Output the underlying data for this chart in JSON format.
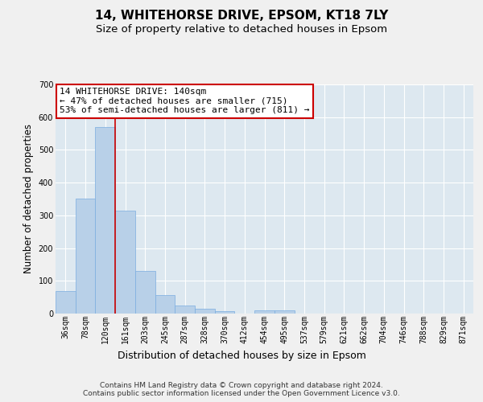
{
  "title1": "14, WHITEHORSE DRIVE, EPSOM, KT18 7LY",
  "title2": "Size of property relative to detached houses in Epsom",
  "xlabel": "Distribution of detached houses by size in Epsom",
  "ylabel": "Number of detached properties",
  "bar_labels": [
    "36sqm",
    "78sqm",
    "120sqm",
    "161sqm",
    "203sqm",
    "245sqm",
    "287sqm",
    "328sqm",
    "370sqm",
    "412sqm",
    "454sqm",
    "495sqm",
    "537sqm",
    "579sqm",
    "621sqm",
    "662sqm",
    "704sqm",
    "746sqm",
    "788sqm",
    "829sqm",
    "871sqm"
  ],
  "bar_values": [
    70,
    352,
    570,
    314,
    130,
    57,
    25,
    15,
    8,
    0,
    10,
    10,
    0,
    0,
    0,
    0,
    0,
    0,
    0,
    0,
    0
  ],
  "bar_color": "#b8d0e8",
  "bar_edgecolor": "#7aade0",
  "bg_color": "#dde8f0",
  "grid_color": "#ffffff",
  "vline_color": "#cc0000",
  "vline_x": 2.5,
  "annotation_text": "14 WHITEHORSE DRIVE: 140sqm\n← 47% of detached houses are smaller (715)\n53% of semi-detached houses are larger (811) →",
  "annotation_box_facecolor": "#ffffff",
  "annotation_box_edgecolor": "#cc0000",
  "ylim": [
    0,
    700
  ],
  "yticks": [
    0,
    100,
    200,
    300,
    400,
    500,
    600,
    700
  ],
  "footer": "Contains HM Land Registry data © Crown copyright and database right 2024.\nContains public sector information licensed under the Open Government Licence v3.0.",
  "title1_fontsize": 11,
  "title2_fontsize": 9.5,
  "xlabel_fontsize": 9,
  "ylabel_fontsize": 8.5,
  "tick_fontsize": 7,
  "annotation_fontsize": 8,
  "footer_fontsize": 6.5
}
